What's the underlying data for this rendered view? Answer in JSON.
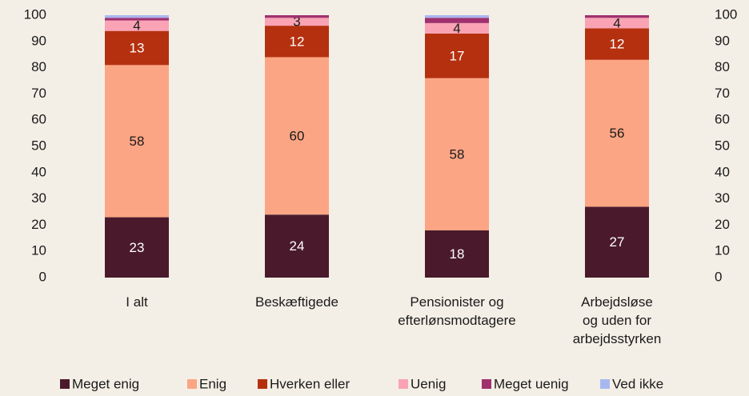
{
  "chart_data": {
    "type": "stacked_bar",
    "categories": [
      "I alt",
      "Beskæftigede",
      "Pensionister og\nefterlønsmodtagere",
      "Arbejdsløse\nog uden for\narbejdsstyrken"
    ],
    "series": [
      {
        "name": "Meget enig",
        "color": "#4a1a2c",
        "values": [
          23,
          24,
          18,
          27
        ],
        "value_labels": [
          "23",
          "24",
          "18",
          "27"
        ]
      },
      {
        "name": "Enig",
        "color": "#fca584",
        "values": [
          58,
          60,
          58,
          56
        ],
        "value_labels": [
          "58",
          "60",
          "58",
          "56"
        ]
      },
      {
        "name": "Hverken eller",
        "color": "#b5300f",
        "values": [
          13,
          12,
          17,
          12
        ],
        "value_labels": [
          "13",
          "12",
          "17",
          "12"
        ]
      },
      {
        "name": "Uenig",
        "color": "#f9a3b5",
        "values": [
          4,
          3,
          4,
          4
        ],
        "value_labels": [
          "4",
          "3",
          "4",
          "4"
        ]
      },
      {
        "name": "Meget uenig",
        "color": "#a0306e",
        "values": [
          1,
          1,
          2,
          1
        ],
        "value_labels": [
          null,
          null,
          null,
          null
        ]
      },
      {
        "name": "Ved ikke",
        "color": "#a9b7f0",
        "values": [
          1,
          0,
          1,
          0
        ],
        "value_labels": [
          null,
          null,
          null,
          null
        ]
      }
    ],
    "ylim": [
      0,
      100
    ],
    "yticks": [
      0,
      10,
      20,
      30,
      40,
      50,
      60,
      70,
      80,
      90,
      100
    ],
    "y2lim": [
      0,
      100
    ],
    "y2ticks": [
      0,
      10,
      20,
      30,
      40,
      50,
      60,
      70,
      80,
      90,
      100
    ],
    "legend": "bottom"
  }
}
